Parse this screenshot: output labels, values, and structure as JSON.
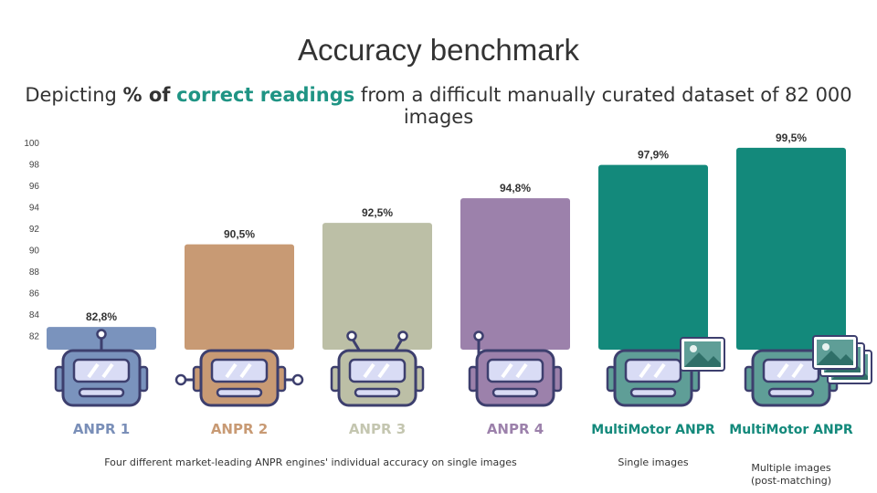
{
  "title": "Accuracy benchmark",
  "subtitle": {
    "part1": "Depicting ",
    "bold1": "% of",
    "space": " ",
    "accent": "correct readings",
    "part2": " from a difficult manually curated dataset of 82  000 images"
  },
  "colors": {
    "accent": "#1f9484"
  },
  "chart_data": {
    "type": "bar",
    "categories": [
      "ANPR 1",
      "ANPR 2",
      "ANPR 3",
      "ANPR 4",
      "MultiMotor ANPR",
      "MultiMotor ANPR"
    ],
    "values": [
      82.8,
      90.5,
      92.5,
      94.8,
      97.9,
      99.5
    ],
    "value_labels": [
      "82,8%",
      "90,5%",
      "92,5%",
      "94,8%",
      "97,9%",
      "99,5%"
    ],
    "bar_colors": [
      "#7a93bd",
      "#c89a74",
      "#bcbfa6",
      "#9c81ab",
      "#13897b",
      "#13897b"
    ],
    "label_colors": [
      "#7a8fb8",
      "#c89a74",
      "#c4c6b0",
      "#9c81ab",
      "#13897b",
      "#13897b"
    ],
    "y_ticks": [
      "100",
      "98",
      "96",
      "94",
      "92",
      "90",
      "88",
      "86",
      "84",
      "82"
    ],
    "ylim": [
      80.5,
      100
    ],
    "icons": [
      "robot-icon",
      "robot-icon",
      "robot-icon",
      "robot-icon",
      "robot-with-image-icon",
      "robot-with-images-icon"
    ],
    "captions": [
      "Four different market-leading ANPR engines' individual accuracy on single images",
      "Single images",
      "Multiple images",
      "(post-matching)"
    ]
  }
}
